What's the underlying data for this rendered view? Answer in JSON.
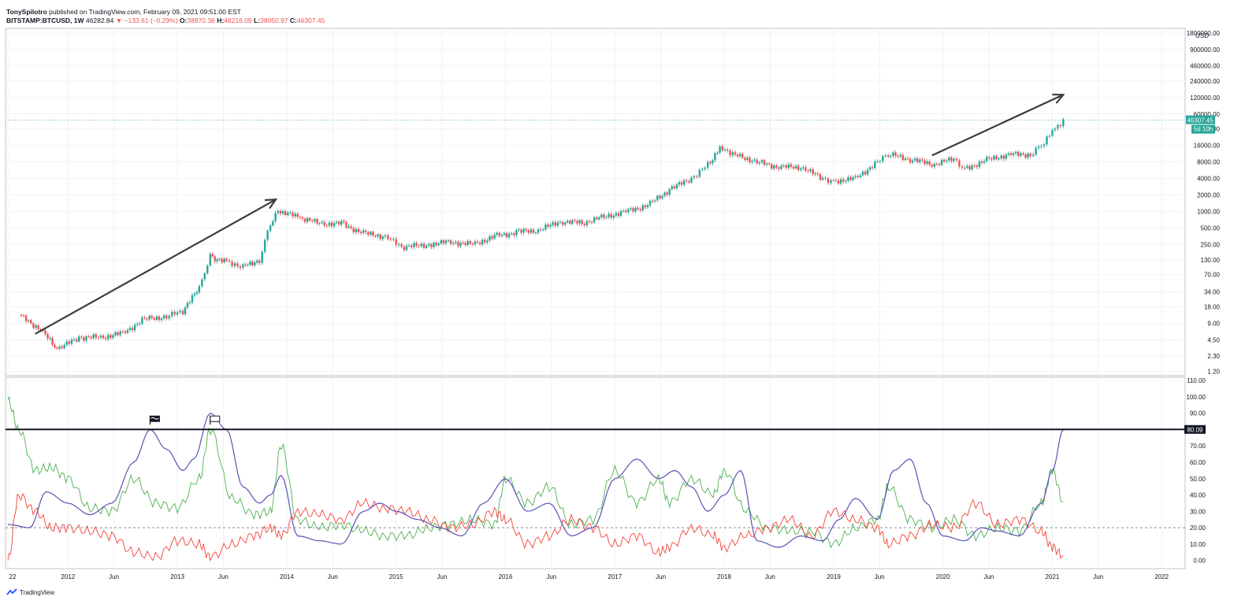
{
  "header": {
    "author": "TonySpilotro",
    "published": "published on TradingView.com, February 09, 2021 09:51:00 EST",
    "symbol": "BITSTAMP:BTCUSD, 1W",
    "last": "46282.84",
    "change": "▼ −133.61 (−0.29%)",
    "o_label": "O:",
    "o": "38870.36",
    "h_label": "H:",
    "h": "48216.09",
    "l_label": "L:",
    "l": "38050.97",
    "c_label": "C:",
    "c": "46307.45"
  },
  "footer": {
    "brand": "TradingView",
    "logo_icon": "tradingview-logo-icon"
  },
  "colors": {
    "up": "#26a69a",
    "down": "#ef5350",
    "green_line": "#4caf50",
    "red_line": "#f44336",
    "blue_line": "#5b52b6",
    "price_line": "#26a69a"
  },
  "chart_data": [
    {
      "type": "candlestick",
      "scale": "log",
      "currency": "USD",
      "y_ticks": [
        "1800000.00",
        "900000.00",
        "460000.00",
        "240000.00",
        "120000.00",
        "60000.00",
        "32000.00",
        "16000.00",
        "8000.00",
        "4000.00",
        "2000.00",
        "1000.00",
        "500.00",
        "250.00",
        "130.00",
        "70.00",
        "34.00",
        "18.00",
        "9.00",
        "4.50",
        "2.30",
        "1.20"
      ],
      "ylim": [
        1.0,
        2200000
      ],
      "x_ticks": [
        "22",
        "2012",
        "Jun",
        "2013",
        "Jun",
        "2014",
        "Jun",
        "2015",
        "Jun",
        "2016",
        "Jun",
        "2017",
        "Jun",
        "2018",
        "Jun",
        "2019",
        "Jun",
        "2020",
        "Jun",
        "2021",
        "Jun",
        "2022"
      ],
      "last_price_label": "46307.45",
      "countdown_label": "5d 10h",
      "series": [
        {
          "x": [
            2011.55,
            2011.75,
            2011.9,
            2012.1,
            2012.3,
            2012.5,
            2012.7,
            2012.9,
            2013.05,
            2013.2,
            2013.3,
            2013.45,
            2013.6,
            2013.75,
            2013.85,
            2013.92,
            2014.1,
            2014.3,
            2014.5,
            2014.7,
            2014.9,
            2015.05,
            2015.3,
            2015.5,
            2015.7,
            2015.9,
            2016.1,
            2016.3,
            2016.5,
            2016.7,
            2016.9,
            2017.1,
            2017.3,
            2017.5,
            2017.7,
            2017.85,
            2017.96,
            2018.1,
            2018.3,
            2018.5,
            2018.7,
            2018.9,
            2019.0,
            2019.2,
            2019.4,
            2019.5,
            2019.7,
            2019.9,
            2020.1,
            2020.2,
            2020.4,
            2020.6,
            2020.8,
            2020.9,
            2021.0,
            2021.1
          ],
          "values": [
            13,
            7,
            3,
            5,
            5,
            6,
            11,
            12,
            15,
            40,
            150,
            120,
            100,
            130,
            600,
            1000,
            800,
            600,
            600,
            400,
            350,
            220,
            250,
            280,
            250,
            350,
            420,
            450,
            650,
            620,
            800,
            1000,
            1300,
            2500,
            4000,
            7000,
            15000,
            11000,
            8000,
            6500,
            6400,
            4000,
            3600,
            4000,
            8000,
            11000,
            9000,
            7200,
            9000,
            6000,
            8700,
            11000,
            11000,
            16000,
            30000,
            46307
          ]
        }
      ],
      "annotations": [
        "arrow 2011.7 to 2013.9",
        "arrow 2019.9 to 2021.1"
      ]
    },
    {
      "type": "line",
      "y_ticks": [
        "110.00",
        "100.00",
        "90.00",
        "80.00",
        "70.00",
        "60.00",
        "50.00",
        "40.00",
        "30.00",
        "20.00",
        "10.00",
        "0.00"
      ],
      "ylim": [
        -5,
        112
      ],
      "threshold_label": "80.09",
      "threshold_value": 80.09,
      "dashed_level": 20,
      "series": [
        {
          "name": "",
          "color": "green",
          "x": [
            2011.45,
            2011.55,
            2011.7,
            2011.85,
            2012.0,
            2012.2,
            2012.4,
            2012.6,
            2012.8,
            2013.0,
            2013.2,
            2013.3,
            2013.5,
            2013.7,
            2013.85,
            2013.95,
            2014.1,
            2014.3,
            2014.5,
            2014.7,
            2014.9,
            2015.1,
            2015.3,
            2015.5,
            2015.7,
            2015.9,
            2016.0,
            2016.2,
            2016.4,
            2016.6,
            2016.8,
            2017.0,
            2017.2,
            2017.4,
            2017.5,
            2017.7,
            2017.9,
            2018.0,
            2018.2,
            2018.4,
            2018.6,
            2018.8,
            2019.0,
            2019.2,
            2019.4,
            2019.5,
            2019.7,
            2019.9,
            2020.1,
            2020.3,
            2020.5,
            2020.7,
            2020.9,
            2021.0,
            2021.1
          ],
          "values": [
            98,
            80,
            55,
            57,
            50,
            32,
            30,
            50,
            35,
            32,
            50,
            80,
            38,
            28,
            30,
            70,
            25,
            20,
            22,
            18,
            15,
            15,
            20,
            22,
            25,
            22,
            50,
            35,
            45,
            22,
            25,
            55,
            35,
            50,
            35,
            50,
            40,
            55,
            30,
            20,
            18,
            18,
            10,
            20,
            25,
            45,
            25,
            20,
            25,
            15,
            20,
            18,
            35,
            55,
            36
          ]
        },
        {
          "name": "",
          "color": "red",
          "x": [
            2011.45,
            2011.55,
            2011.7,
            2011.85,
            2012.0,
            2012.2,
            2012.4,
            2012.6,
            2012.8,
            2013.0,
            2013.2,
            2013.3,
            2013.5,
            2013.7,
            2013.85,
            2013.95,
            2014.1,
            2014.3,
            2014.5,
            2014.7,
            2014.9,
            2015.1,
            2015.3,
            2015.5,
            2015.7,
            2015.9,
            2016.0,
            2016.2,
            2016.4,
            2016.6,
            2016.8,
            2017.0,
            2017.2,
            2017.4,
            2017.5,
            2017.7,
            2017.9,
            2018.0,
            2018.2,
            2018.4,
            2018.6,
            2018.8,
            2019.0,
            2019.2,
            2019.4,
            2019.5,
            2019.7,
            2019.9,
            2020.1,
            2020.3,
            2020.5,
            2020.7,
            2020.9,
            2021.0,
            2021.1
          ],
          "values": [
            0,
            40,
            30,
            20,
            20,
            18,
            15,
            5,
            2,
            12,
            10,
            2,
            10,
            15,
            20,
            15,
            30,
            28,
            25,
            35,
            32,
            30,
            25,
            20,
            22,
            30,
            25,
            10,
            15,
            25,
            20,
            10,
            15,
            5,
            8,
            20,
            15,
            8,
            15,
            20,
            25,
            15,
            30,
            25,
            20,
            10,
            15,
            22,
            20,
            35,
            22,
            25,
            18,
            8,
            3
          ]
        },
        {
          "name": "",
          "color": "blue",
          "x": [
            2011.45,
            2011.65,
            2011.8,
            2012.0,
            2012.2,
            2012.4,
            2012.6,
            2012.75,
            2012.9,
            2013.05,
            2013.15,
            2013.3,
            2013.45,
            2013.6,
            2013.75,
            2013.85,
            2013.95,
            2014.1,
            2014.3,
            2014.5,
            2014.7,
            2014.85,
            2015.0,
            2015.2,
            2015.4,
            2015.6,
            2015.8,
            2016.0,
            2016.2,
            2016.4,
            2016.6,
            2016.8,
            2017.0,
            2017.2,
            2017.4,
            2017.55,
            2017.7,
            2017.85,
            2018.0,
            2018.15,
            2018.3,
            2018.5,
            2018.7,
            2018.9,
            2019.05,
            2019.2,
            2019.4,
            2019.55,
            2019.7,
            2019.85,
            2020.0,
            2020.2,
            2020.35,
            2020.5,
            2020.7,
            2020.9,
            2021.0,
            2021.1
          ],
          "values": [
            22,
            20,
            42,
            35,
            28,
            35,
            60,
            80,
            68,
            55,
            62,
            90,
            80,
            45,
            35,
            40,
            52,
            15,
            12,
            10,
            30,
            35,
            30,
            25,
            20,
            15,
            35,
            50,
            30,
            35,
            15,
            20,
            50,
            62,
            50,
            55,
            45,
            30,
            40,
            55,
            12,
            8,
            15,
            12,
            25,
            38,
            25,
            55,
            62,
            35,
            15,
            12,
            20,
            18,
            15,
            35,
            55,
            80
          ]
        }
      ]
    }
  ]
}
